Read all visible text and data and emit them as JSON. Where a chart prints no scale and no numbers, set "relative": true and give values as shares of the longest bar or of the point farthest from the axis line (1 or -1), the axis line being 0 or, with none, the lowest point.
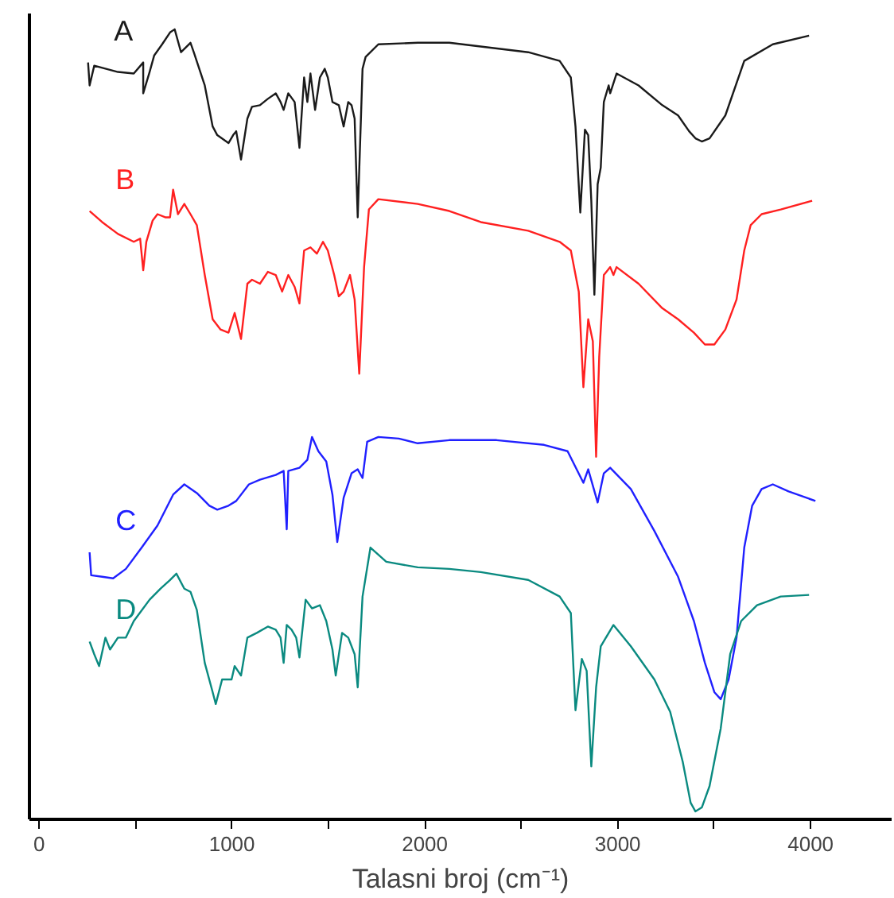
{
  "chart_data": {
    "type": "line",
    "relative": true,
    "xlabel": "Talasni broj (cm⁻¹)",
    "xlim": [
      -50,
      4420
    ],
    "xticks": [
      0,
      {
        "value": 500,
        "label": null
      },
      1000,
      {
        "value": 1500,
        "label": null
      },
      2000,
      {
        "value": 2500,
        "label": null
      },
      3000,
      {
        "value": 3500,
        "label": null
      },
      4000
    ],
    "grid": false,
    "legend": false,
    "tick_labels": "x",
    "series": [
      {
        "name": "A",
        "color": "#1a1a1a",
        "x": [
          254,
          262,
          286,
          409,
          491,
          540,
          540,
          573,
          597,
          638,
          679,
          703,
          736,
          785,
          802,
          859,
          900,
          924,
          982,
          1006,
          1022,
          1047,
          1080,
          1104,
          1145,
          1186,
          1227,
          1252,
          1268,
          1292,
          1325,
          1350,
          1374,
          1391,
          1407,
          1431,
          1456,
          1481,
          1497,
          1521,
          1554,
          1579,
          1603,
          1620,
          1636,
          1652,
          1677,
          1693,
          1759,
          1963,
          2127,
          2536,
          2699,
          2757,
          2781,
          2806,
          2830,
          2847,
          2863,
          2879,
          2896,
          2912,
          2928,
          2953,
          2961,
          2994,
          3108,
          3231,
          3313,
          3370,
          3403,
          3436,
          3476,
          3558,
          3656,
          3804,
          3992
        ],
        "values": [
          0.958,
          0.929,
          0.954,
          0.946,
          0.944,
          0.958,
          0.919,
          0.946,
          0.967,
          0.981,
          0.996,
          1.0,
          0.971,
          0.983,
          0.971,
          0.929,
          0.877,
          0.866,
          0.856,
          0.866,
          0.871,
          0.835,
          0.887,
          0.902,
          0.904,
          0.912,
          0.919,
          0.908,
          0.898,
          0.919,
          0.908,
          0.85,
          0.939,
          0.908,
          0.944,
          0.898,
          0.939,
          0.95,
          0.939,
          0.908,
          0.904,
          0.877,
          0.908,
          0.904,
          0.887,
          0.762,
          0.95,
          0.965,
          0.981,
          0.983,
          0.983,
          0.971,
          0.96,
          0.939,
          0.877,
          0.768,
          0.873,
          0.866,
          0.783,
          0.664,
          0.804,
          0.825,
          0.908,
          0.929,
          0.919,
          0.944,
          0.929,
          0.904,
          0.891,
          0.871,
          0.862,
          0.858,
          0.862,
          0.891,
          0.96,
          0.981,
          0.992
        ]
      },
      {
        "name": "B",
        "color": "#ff2020",
        "x": [
          262,
          327,
          409,
          491,
          524,
          540,
          556,
          589,
          614,
          654,
          679,
          695,
          720,
          753,
          785,
          818,
          859,
          900,
          941,
          982,
          1014,
          1047,
          1080,
          1104,
          1145,
          1186,
          1227,
          1260,
          1292,
          1325,
          1350,
          1374,
          1407,
          1440,
          1472,
          1497,
          1530,
          1554,
          1579,
          1612,
          1636,
          1660,
          1685,
          1710,
          1759,
          1963,
          2127,
          2290,
          2536,
          2699,
          2757,
          2798,
          2822,
          2847,
          2871,
          2888,
          2904,
          2928,
          2961,
          2978,
          2994,
          3108,
          3231,
          3313,
          3395,
          3452,
          3501,
          3558,
          3616,
          3656,
          3689,
          3746,
          3845,
          4008
        ],
        "values": [
          0.77,
          0.756,
          0.741,
          0.731,
          0.735,
          0.695,
          0.731,
          0.758,
          0.766,
          0.762,
          0.762,
          0.797,
          0.766,
          0.779,
          0.766,
          0.752,
          0.689,
          0.633,
          0.62,
          0.616,
          0.641,
          0.608,
          0.678,
          0.683,
          0.678,
          0.693,
          0.689,
          0.668,
          0.689,
          0.674,
          0.653,
          0.72,
          0.724,
          0.716,
          0.731,
          0.72,
          0.689,
          0.662,
          0.668,
          0.689,
          0.658,
          0.564,
          0.699,
          0.772,
          0.785,
          0.779,
          0.77,
          0.756,
          0.745,
          0.731,
          0.72,
          0.668,
          0.547,
          0.633,
          0.605,
          0.459,
          0.585,
          0.689,
          0.699,
          0.689,
          0.699,
          0.678,
          0.647,
          0.633,
          0.616,
          0.601,
          0.601,
          0.62,
          0.658,
          0.72,
          0.752,
          0.766,
          0.772,
          0.783
        ]
      },
      {
        "name": "C",
        "color": "#2020ff",
        "x": [
          262,
          270,
          327,
          384,
          450,
          532,
          614,
          695,
          753,
          818,
          883,
          924,
          982,
          1022,
          1088,
          1145,
          1227,
          1268,
          1284,
          1292,
          1350,
          1391,
          1415,
          1448,
          1489,
          1521,
          1546,
          1579,
          1620,
          1652,
          1677,
          1701,
          1759,
          1865,
          1963,
          2127,
          2372,
          2618,
          2740,
          2822,
          2847,
          2896,
          2928,
          2961,
          3068,
          3190,
          3313,
          3395,
          3452,
          3501,
          3534,
          3575,
          3616,
          3656,
          3697,
          3746,
          3804,
          3886,
          4025
        ],
        "values": [
          0.338,
          0.309,
          0.307,
          0.305,
          0.317,
          0.344,
          0.372,
          0.411,
          0.424,
          0.413,
          0.397,
          0.392,
          0.397,
          0.403,
          0.424,
          0.43,
          0.436,
          0.441,
          0.367,
          0.441,
          0.445,
          0.455,
          0.484,
          0.466,
          0.453,
          0.411,
          0.351,
          0.407,
          0.438,
          0.443,
          0.432,
          0.478,
          0.484,
          0.482,
          0.476,
          0.48,
          0.48,
          0.474,
          0.466,
          0.426,
          0.443,
          0.401,
          0.438,
          0.445,
          0.418,
          0.365,
          0.307,
          0.251,
          0.198,
          0.161,
          0.152,
          0.177,
          0.23,
          0.344,
          0.397,
          0.418,
          0.424,
          0.415,
          0.403
        ]
      },
      {
        "name": "D",
        "color": "#0a8a80",
        "x": [
          262,
          286,
          311,
          344,
          368,
          409,
          450,
          491,
          573,
          630,
          679,
          712,
          753,
          785,
          818,
          859,
          900,
          916,
          949,
          998,
          1014,
          1047,
          1080,
          1129,
          1186,
          1227,
          1252,
          1268,
          1284,
          1309,
          1333,
          1350,
          1382,
          1415,
          1456,
          1489,
          1521,
          1538,
          1571,
          1603,
          1636,
          1652,
          1677,
          1718,
          1800,
          1963,
          2127,
          2290,
          2536,
          2699,
          2757,
          2781,
          2814,
          2839,
          2863,
          2888,
          2912,
          2978,
          3068,
          3190,
          3272,
          3337,
          3378,
          3403,
          3436,
          3476,
          3534,
          3583,
          3640,
          3722,
          3845,
          3992
        ],
        "values": [
          0.225,
          0.209,
          0.194,
          0.23,
          0.215,
          0.23,
          0.23,
          0.251,
          0.278,
          0.292,
          0.303,
          0.311,
          0.292,
          0.288,
          0.265,
          0.198,
          0.161,
          0.146,
          0.177,
          0.177,
          0.194,
          0.182,
          0.23,
          0.236,
          0.244,
          0.24,
          0.23,
          0.198,
          0.246,
          0.24,
          0.23,
          0.205,
          0.278,
          0.267,
          0.271,
          0.251,
          0.215,
          0.182,
          0.236,
          0.23,
          0.209,
          0.167,
          0.282,
          0.344,
          0.326,
          0.319,
          0.317,
          0.313,
          0.303,
          0.282,
          0.261,
          0.138,
          0.203,
          0.188,
          0.067,
          0.167,
          0.219,
          0.246,
          0.219,
          0.177,
          0.136,
          0.073,
          0.021,
          0.01,
          0.015,
          0.042,
          0.115,
          0.209,
          0.251,
          0.271,
          0.282,
          0.284
        ]
      }
    ]
  }
}
